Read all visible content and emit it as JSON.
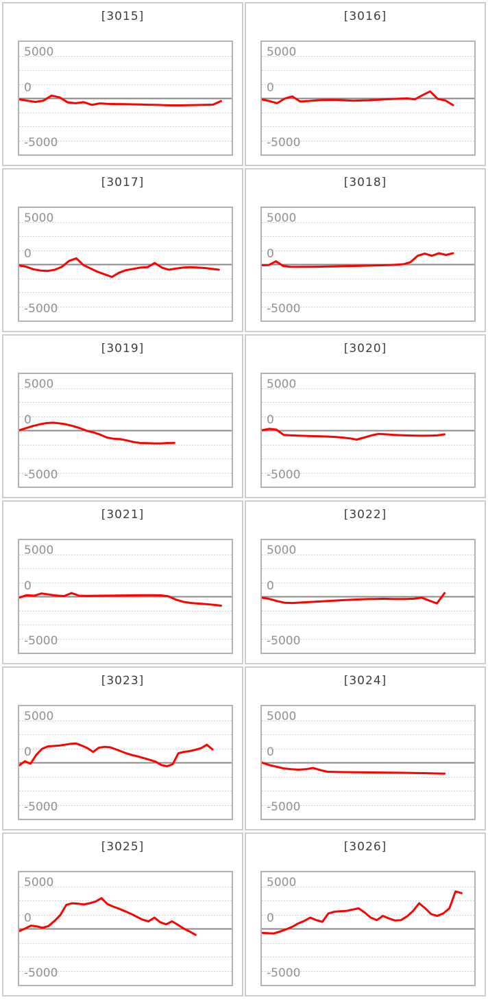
{
  "page": {
    "background": "#ffffff",
    "layout": "grid of 12 sparkline panels, 6 rows x 2 columns"
  },
  "colors": {
    "line": "#ff0000",
    "zero_line": "#878787",
    "gridline": "#cfcfcf",
    "plot_border": "#b2b2b2",
    "panel_border": "#cdcdcd",
    "tick_label": "#919191",
    "title": "#3d3d3d",
    "background": "#ffffff"
  },
  "axis": {
    "tick_labels": [
      "5000",
      "0",
      "-5000"
    ],
    "tick_values": [
      5000,
      0,
      -5000
    ],
    "ylim": [
      -6700,
      6700
    ],
    "gridlines": {
      "values": [
        5000,
        3333,
        1667,
        0,
        -1667,
        -3333,
        -5000
      ],
      "style": "dotted",
      "zero_line": "solid dark gray"
    },
    "legend": "none",
    "x_axis_labels": "none"
  },
  "chart_data": [
    {
      "type": "line",
      "title": "[3015]",
      "x_span": 0.95,
      "values": [
        -150,
        -300,
        -450,
        -300,
        300,
        100,
        -500,
        -600,
        -480,
        -800,
        -620,
        -680,
        -700,
        -710,
        -730,
        -750,
        -780,
        -800,
        -830,
        -850,
        -850,
        -830,
        -810,
        -790,
        -770,
        -350
      ]
    },
    {
      "type": "line",
      "title": "[3016]",
      "x_span": 0.9,
      "values": [
        -150,
        -350,
        -600,
        -50,
        200,
        -400,
        -350,
        -280,
        -230,
        -200,
        -230,
        -270,
        -300,
        -280,
        -250,
        -200,
        -150,
        -100,
        -60,
        -30,
        -150,
        350,
        800,
        -100,
        -280,
        -830
      ]
    },
    {
      "type": "line",
      "title": "[3017]",
      "x_span": 0.94,
      "values": [
        -150,
        -300,
        -600,
        -750,
        -800,
        -650,
        -300,
        400,
        700,
        -100,
        -500,
        -900,
        -1200,
        -1500,
        -1000,
        -700,
        -550,
        -400,
        -350,
        150,
        -400,
        -650,
        -500,
        -400,
        -350,
        -400,
        -450,
        -550,
        -650
      ]
    },
    {
      "type": "line",
      "title": "[3018]",
      "x_span": 0.9,
      "values": [
        -120,
        -100,
        350,
        -200,
        -300,
        -320,
        -310,
        -300,
        -290,
        -280,
        -260,
        -240,
        -220,
        -200,
        -180,
        -160,
        -140,
        -120,
        -100,
        -60,
        0,
        250,
        1000,
        1250,
        1000,
        1300,
        1100,
        1300
      ]
    },
    {
      "type": "line",
      "title": "[3019]",
      "x_span": 0.73,
      "values": [
        0,
        250,
        500,
        700,
        850,
        900,
        820,
        700,
        500,
        250,
        -50,
        -250,
        -500,
        -850,
        -1000,
        -1050,
        -1200,
        -1400,
        -1500,
        -1530,
        -1550,
        -1550,
        -1500,
        -1480
      ]
    },
    {
      "type": "line",
      "title": "[3020]",
      "x_span": 0.86,
      "values": [
        0,
        180,
        80,
        -550,
        -600,
        -630,
        -660,
        -690,
        -710,
        -740,
        -780,
        -850,
        -950,
        -1100,
        -850,
        -600,
        -420,
        -480,
        -540,
        -580,
        -610,
        -630,
        -640,
        -630,
        -600,
        -480
      ]
    },
    {
      "type": "line",
      "title": "[3021]",
      "x_span": 0.95,
      "values": [
        -150,
        150,
        80,
        350,
        220,
        100,
        30,
        400,
        80,
        60,
        70,
        80,
        90,
        100,
        110,
        120,
        130,
        140,
        150,
        120,
        0,
        -400,
        -650,
        -780,
        -850,
        -920,
        -1000,
        -1100
      ]
    },
    {
      "type": "line",
      "title": "[3022]",
      "x_span": 0.86,
      "values": [
        -150,
        -300,
        -550,
        -750,
        -780,
        -730,
        -680,
        -630,
        -580,
        -530,
        -480,
        -430,
        -390,
        -350,
        -320,
        -300,
        -280,
        -300,
        -320,
        -300,
        -280,
        -150,
        -500,
        -830,
        400
      ]
    },
    {
      "type": "line",
      "title": "[3023]",
      "x_span": 0.91,
      "values": [
        -350,
        150,
        -150,
        900,
        1600,
        1900,
        1950,
        2000,
        2100,
        2200,
        2250,
        2000,
        1700,
        1250,
        1750,
        1850,
        1800,
        1550,
        1300,
        1050,
        850,
        700,
        500,
        300,
        100,
        -300,
        -450,
        -200,
        1100,
        1250,
        1350,
        1500,
        1700,
        2100,
        1550
      ]
    },
    {
      "type": "line",
      "title": "[3024]",
      "x_span": 0.86,
      "values": [
        0,
        -300,
        -500,
        -700,
        -800,
        -850,
        -800,
        -650,
        -900,
        -1100,
        -1120,
        -1140,
        -1150,
        -1160,
        -1170,
        -1180,
        -1190,
        -1200,
        -1210,
        -1220,
        -1230,
        -1250,
        -1260,
        -1280,
        -1300,
        -1320
      ]
    },
    {
      "type": "line",
      "title": "[3025]",
      "x_span": 0.83,
      "values": [
        -300,
        0,
        350,
        250,
        100,
        300,
        900,
        1600,
        2800,
        3000,
        2950,
        2850,
        3000,
        3200,
        3600,
        2900,
        2600,
        2350,
        2050,
        1750,
        1400,
        1050,
        850,
        1300,
        750,
        500,
        850,
        450,
        0,
        -350,
        -750
      ]
    },
    {
      "type": "line",
      "title": "[3026]",
      "x_span": 0.94,
      "values": [
        -500,
        -550,
        -580,
        -350,
        -100,
        200,
        600,
        900,
        1300,
        1000,
        800,
        1800,
        2000,
        2050,
        2100,
        2250,
        2400,
        1900,
        1300,
        1000,
        1500,
        1200,
        950,
        1000,
        1450,
        2100,
        3000,
        2400,
        1700,
        1500,
        1800,
        2400,
        4400,
        4200
      ]
    }
  ]
}
